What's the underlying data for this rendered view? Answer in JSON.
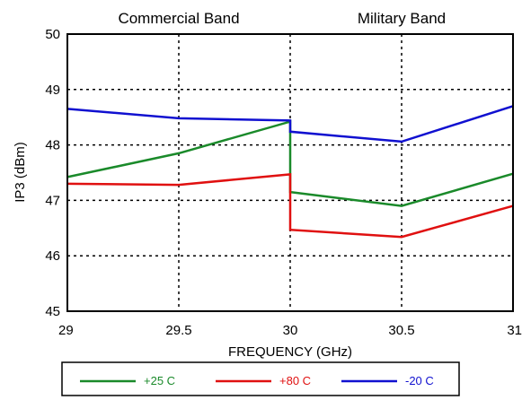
{
  "chart_data": {
    "type": "line",
    "xlabel": "FREQUENCY (GHz)",
    "ylabel": "IP3 (dBm)",
    "xlim": [
      29,
      31
    ],
    "ylim": [
      45,
      50
    ],
    "xticks": [
      "29",
      "29.5",
      "30",
      "30.5",
      "31"
    ],
    "yticks": [
      "45",
      "46",
      "47",
      "48",
      "49",
      "50"
    ],
    "grid": true,
    "band_labels": [
      {
        "text": "Commercial Band",
        "x": 29.5
      },
      {
        "text": "Military Band",
        "x": 30.5
      }
    ],
    "legend_position": "bottom",
    "series": [
      {
        "name": "+25 C",
        "color": "#1a8a2a",
        "points": [
          [
            29,
            47.42
          ],
          [
            29.5,
            47.85
          ],
          [
            30,
            48.42
          ],
          [
            30,
            47.15
          ],
          [
            30.5,
            46.9
          ],
          [
            31,
            47.48
          ]
        ]
      },
      {
        "name": "+80 C",
        "color": "#e01010",
        "points": [
          [
            29,
            47.3
          ],
          [
            29.5,
            47.28
          ],
          [
            30,
            47.47
          ],
          [
            30,
            46.47
          ],
          [
            30.5,
            46.34
          ],
          [
            31,
            46.9
          ]
        ]
      },
      {
        "name": "-20 C",
        "color": "#1010d0",
        "points": [
          [
            29,
            48.65
          ],
          [
            29.5,
            48.48
          ],
          [
            30,
            48.44
          ],
          [
            30,
            48.24
          ],
          [
            30.5,
            48.06
          ],
          [
            31,
            48.7
          ]
        ]
      }
    ]
  }
}
